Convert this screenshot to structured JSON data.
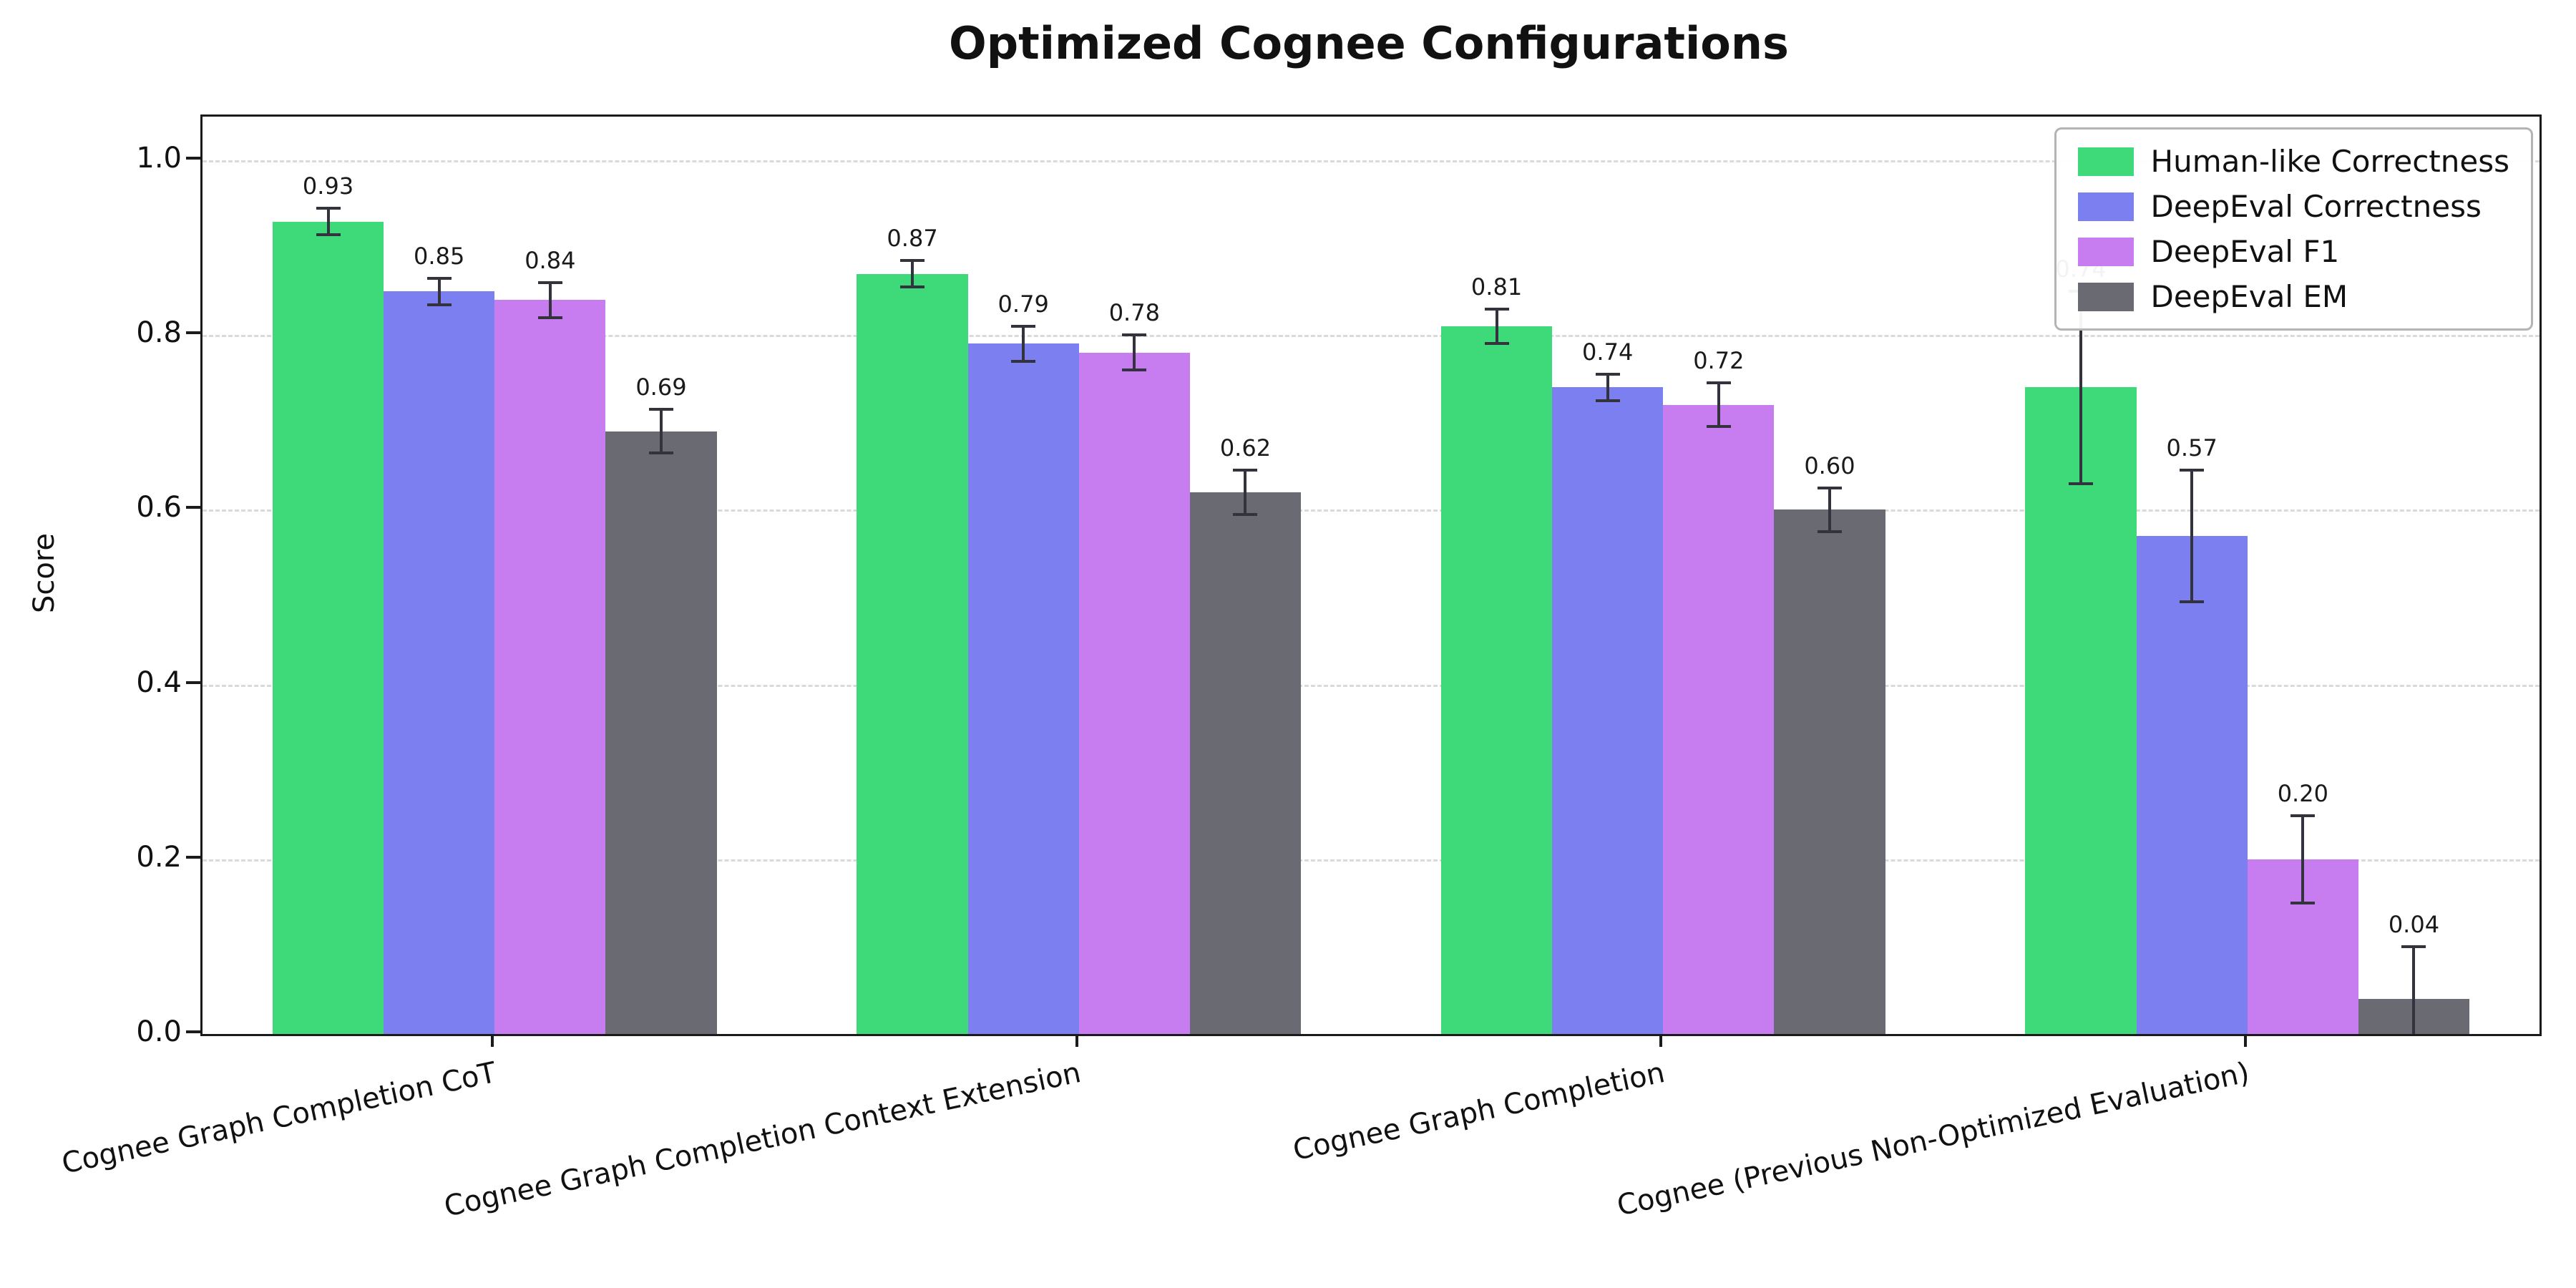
{
  "chart_data": {
    "type": "bar",
    "title": "Optimized Cognee Configurations",
    "xlabel": "",
    "ylabel": "Score",
    "ylim": [
      0,
      1.05
    ],
    "yticks": [
      0.0,
      0.2,
      0.4,
      0.6,
      0.8,
      1.0
    ],
    "grid": "horizontal-dashed",
    "legend_position": "upper-right",
    "errorbar_color": "#33333d",
    "categories": [
      "Cognee Graph Completion CoT",
      "Cognee Graph Completion Context Extension",
      "Cognee Graph Completion",
      "Cognee (Previous Non-Optimized Evaluation)"
    ],
    "series": [
      {
        "name": "Human-like Correctness",
        "color": "#3ed978",
        "values": [
          0.93,
          0.87,
          0.81,
          0.74
        ],
        "errors": [
          0.015,
          0.015,
          0.02,
          0.11
        ]
      },
      {
        "name": "DeepEval Correctness",
        "color": "#7c7ff0",
        "values": [
          0.85,
          0.79,
          0.74,
          0.57
        ],
        "errors": [
          0.015,
          0.02,
          0.015,
          0.075
        ]
      },
      {
        "name": "DeepEval F1",
        "color": "#c77df0",
        "values": [
          0.84,
          0.78,
          0.72,
          0.2
        ],
        "errors": [
          0.02,
          0.02,
          0.025,
          0.05
        ]
      },
      {
        "name": "DeepEval EM",
        "color": "#696a72",
        "values": [
          0.69,
          0.62,
          0.6,
          0.04
        ],
        "errors": [
          0.025,
          0.025,
          0.025,
          0.06
        ]
      }
    ]
  }
}
